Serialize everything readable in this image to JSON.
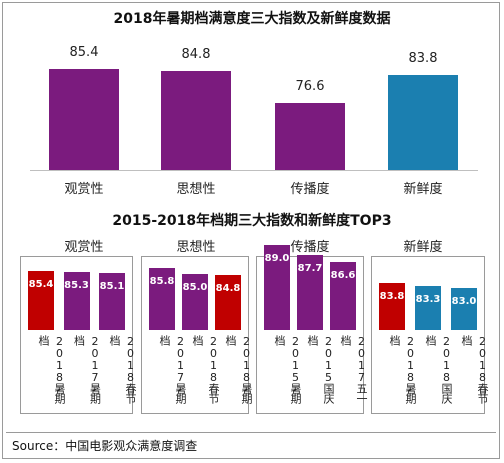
{
  "chart_data": [
    {
      "type": "bar",
      "title": "2018年暑期档满意度三大指数及新鲜度数据",
      "categories": [
        "观赏性",
        "思想性",
        "传播度",
        "新鲜度"
      ],
      "values": [
        85.4,
        84.8,
        76.6,
        83.8
      ],
      "value_labels": [
        "85.4",
        "84.8",
        "76.6",
        "83.8"
      ],
      "colors": [
        "#7b1b7e",
        "#7b1b7e",
        "#7b1b7e",
        "#1b7fb0"
      ]
    },
    {
      "type": "bar",
      "title": "2015-2018年档期三大指数和新鲜度TOP3",
      "groups": [
        {
          "name": "观赏性",
          "categories": [
            "2018暑期档",
            "2017暑期档",
            "2018春节档"
          ],
          "values": [
            85.4,
            85.3,
            85.1
          ],
          "value_labels": [
            "85.4",
            "85.3",
            "85.1"
          ],
          "colors": [
            "#c00000",
            "#7b1b7e",
            "#7b1b7e"
          ]
        },
        {
          "name": "思想性",
          "categories": [
            "2017暑期档",
            "2018春节档",
            "2018暑期档"
          ],
          "values": [
            85.8,
            85.0,
            84.8
          ],
          "value_labels": [
            "85.8",
            "85.0",
            "84.8"
          ],
          "colors": [
            "#7b1b7e",
            "#7b1b7e",
            "#c00000"
          ]
        },
        {
          "name": "传播度",
          "categories": [
            "2015暑期档",
            "2015国庆档",
            "2017五一档"
          ],
          "values": [
            89.0,
            87.7,
            86.6
          ],
          "value_labels": [
            "89.0",
            "87.7",
            "86.6"
          ],
          "colors": [
            "#7b1b7e",
            "#7b1b7e",
            "#7b1b7e"
          ]
        },
        {
          "name": "新鲜度",
          "categories": [
            "2018暑期档",
            "2018国庆档",
            "2018春节档"
          ],
          "values": [
            83.8,
            83.3,
            83.0
          ],
          "value_labels": [
            "83.8",
            "83.3",
            "83.0"
          ],
          "colors": [
            "#c00000",
            "#1b7fb0",
            "#1b7fb0"
          ]
        }
      ]
    }
  ],
  "source": "Source：中国电影观众满意度调查"
}
